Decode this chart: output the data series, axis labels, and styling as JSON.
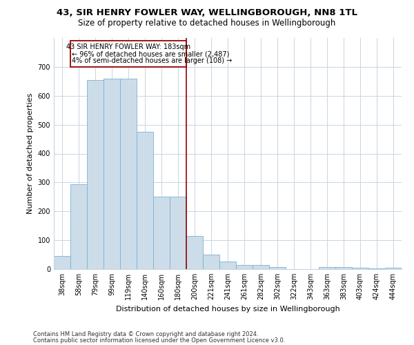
{
  "title": "43, SIR HENRY FOWLER WAY, WELLINGBOROUGH, NN8 1TL",
  "subtitle": "Size of property relative to detached houses in Wellingborough",
  "xlabel": "Distribution of detached houses by size in Wellingborough",
  "ylabel": "Number of detached properties",
  "bar_labels": [
    "38sqm",
    "58sqm",
    "79sqm",
    "99sqm",
    "119sqm",
    "140sqm",
    "160sqm",
    "180sqm",
    "200sqm",
    "221sqm",
    "241sqm",
    "261sqm",
    "282sqm",
    "302sqm",
    "322sqm",
    "343sqm",
    "363sqm",
    "383sqm",
    "403sqm",
    "424sqm",
    "444sqm"
  ],
  "bar_values": [
    45,
    293,
    655,
    660,
    660,
    475,
    250,
    250,
    115,
    50,
    27,
    15,
    15,
    8,
    0,
    0,
    8,
    8,
    5,
    3,
    5
  ],
  "bar_color": "#ccdde9",
  "bar_edge_color": "#7bafd4",
  "ref_bar_index": 7,
  "annotation_line1": "43 SIR HENRY FOWLER WAY: 183sqm",
  "annotation_line2": "← 96% of detached houses are smaller (2,487)",
  "annotation_line3": "4% of semi-detached houses are larger (108) →",
  "ylim": [
    0,
    800
  ],
  "yticks": [
    0,
    100,
    200,
    300,
    400,
    500,
    600,
    700
  ],
  "footer1": "Contains HM Land Registry data © Crown copyright and database right 2024.",
  "footer2": "Contains public sector information licensed under the Open Government Licence v3.0.",
  "background_color": "#ffffff",
  "grid_color": "#c8d4e3",
  "title_fontsize": 9.5,
  "subtitle_fontsize": 8.5,
  "axis_label_fontsize": 8,
  "tick_fontsize": 7,
  "footer_fontsize": 6
}
